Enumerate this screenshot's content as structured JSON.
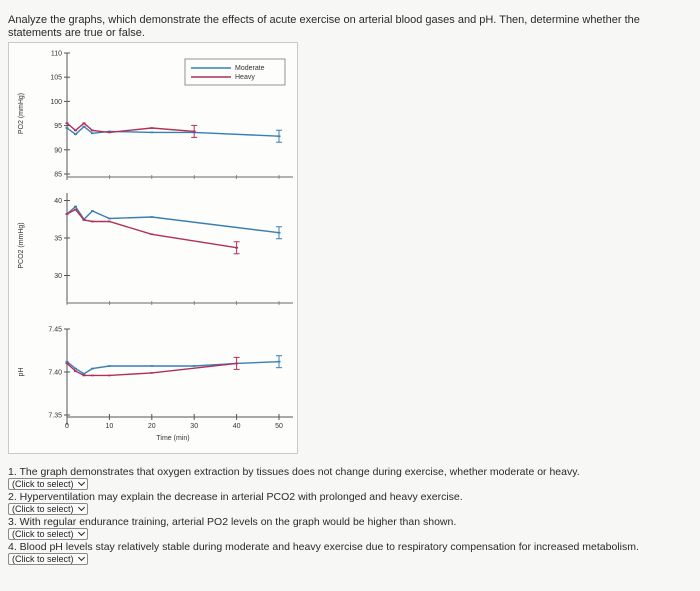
{
  "instructions": "Analyze the graphs, which demonstrate the effects of acute exercise on arterial blood gases and pH. Then, determine whether the statements are true or false.",
  "colors": {
    "moderate": "#3a7fb3",
    "heavy": "#b0305a",
    "axis": "#555555"
  },
  "chart_data": [
    {
      "type": "line",
      "panel": "top",
      "ylabel": "PO2 (mmHg)",
      "ylim": [
        85,
        110
      ],
      "yticks": [
        110,
        105,
        100,
        95,
        90,
        85
      ],
      "legend": {
        "position": "top-right",
        "entries": [
          "Moderate",
          "Heavy"
        ]
      },
      "series": [
        {
          "name": "Moderate",
          "x": [
            0,
            2,
            4,
            6,
            10,
            20,
            30,
            50
          ],
          "y": [
            94.5,
            93.2,
            94.8,
            93.4,
            93.8,
            93.6,
            93.6,
            92.8
          ]
        },
        {
          "name": "Heavy",
          "x": [
            0,
            2,
            4,
            6,
            10,
            20,
            30
          ],
          "y": [
            95.5,
            94.0,
            95.5,
            94.0,
            93.6,
            94.5,
            93.8
          ]
        }
      ]
    },
    {
      "type": "line",
      "panel": "middle",
      "ylabel": "PCO2 (mmHg)",
      "ylim": [
        27,
        41
      ],
      "yticks": [
        40,
        35,
        30
      ],
      "series": [
        {
          "name": "Moderate",
          "x": [
            0,
            2,
            4,
            6,
            10,
            20,
            50
          ],
          "y": [
            38.2,
            39.2,
            37.5,
            38.6,
            37.6,
            37.8,
            35.7
          ]
        },
        {
          "name": "Heavy",
          "x": [
            0,
            2,
            4,
            6,
            10,
            20,
            40
          ],
          "y": [
            38.2,
            38.8,
            37.4,
            37.2,
            37.2,
            35.5,
            33.7
          ]
        }
      ]
    },
    {
      "type": "line",
      "panel": "bottom",
      "ylabel": "pH",
      "xlabel": "Time (min)",
      "ylim": [
        7.35,
        7.45
      ],
      "xlim": [
        0,
        50
      ],
      "yticks": [
        7.45,
        7.4,
        7.35
      ],
      "xticks": [
        0,
        10,
        20,
        30,
        40,
        50
      ],
      "series": [
        {
          "name": "Moderate",
          "x": [
            0,
            2,
            4,
            6,
            10,
            20,
            30,
            40,
            50
          ],
          "y": [
            7.412,
            7.404,
            7.398,
            7.404,
            7.407,
            7.407,
            7.407,
            7.41,
            7.412
          ]
        },
        {
          "name": "Heavy",
          "x": [
            0,
            2,
            4,
            6,
            10,
            20,
            40
          ],
          "y": [
            7.41,
            7.401,
            7.396,
            7.396,
            7.396,
            7.399,
            7.41
          ]
        }
      ]
    }
  ],
  "questions": [
    {
      "text": "1. The graph demonstrates that oxygen extraction by tissues does not change during exercise, whether moderate or heavy.",
      "select": "(Click to select)"
    },
    {
      "text": "2. Hyperventilation may explain the decrease in arterial PCO2 with prolonged and heavy exercise.",
      "select": "(Click to select)"
    },
    {
      "text": "3. With regular endurance training, arterial PO2 levels on the graph would be higher than shown.",
      "select": "(Click to select)"
    },
    {
      "text": "4. Blood pH levels stay relatively stable during moderate and heavy exercise due to respiratory compensation for increased metabolism.",
      "select": "(Click to select)"
    }
  ]
}
